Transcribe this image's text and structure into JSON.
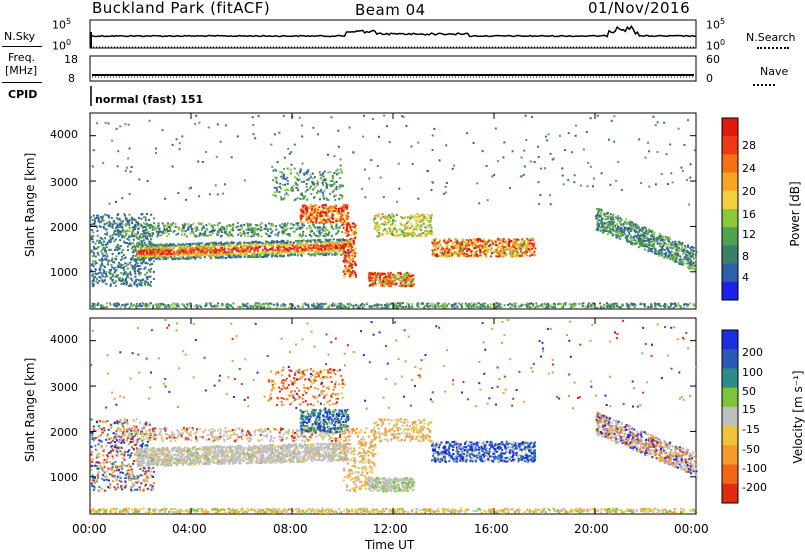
{
  "header": {
    "station": "Buckland Park (fitACF)",
    "beam": "Beam 04",
    "date": "01/Nov/2016"
  },
  "top_panels": {
    "nsky_label": "N.Sky",
    "nsky_left_ticks": [
      "10^5",
      "10^0"
    ],
    "nsearch_label": "N.Search",
    "nsearch_right_ticks": [
      "10^5",
      "10^0"
    ],
    "freq_label_1": "Freq.",
    "freq_label_2": "[MHz]",
    "freq_left_ticks": [
      "18",
      "8"
    ],
    "nave_label": "Nave",
    "nave_right_ticks": [
      "60",
      "0"
    ],
    "cpid_label": "CPID",
    "cpid_text": "normal (fast) 151"
  },
  "chart_data": [
    {
      "type": "heatmap",
      "name": "power",
      "ylabel": "Slant Range [km]",
      "yticks": [
        "1000",
        "2000",
        "3000",
        "4000"
      ],
      "ylim": [
        180,
        4500
      ],
      "colorbar_label": "Power [dB]",
      "colorbar_ticks": [
        "4",
        "8",
        "12",
        "16",
        "20",
        "24",
        "28"
      ],
      "colorbar_colors": [
        "#1e22e6",
        "#2f5fa8",
        "#3b7e6a",
        "#4fa24f",
        "#8ec83a",
        "#f2d23a",
        "#f6a623",
        "#f47216",
        "#ec3a12",
        "#e11a10"
      ]
    },
    {
      "type": "heatmap",
      "name": "velocity",
      "ylabel": "Slant Range [km]",
      "yticks": [
        "1000",
        "2000",
        "3000",
        "4000"
      ],
      "ylim": [
        180,
        4500
      ],
      "colorbar_label": "Velocity [m s⁻¹]",
      "colorbar_ticks": [
        "200",
        "100",
        "50",
        "15",
        "-15",
        "-50",
        "-100",
        "-200"
      ],
      "colorbar_colors": [
        "#1a2ee0",
        "#2a5ab8",
        "#2f8a8a",
        "#7cc43a",
        "#bfbfbf",
        "#f2c23a",
        "#f59a2a",
        "#f2661a",
        "#e02a12"
      ]
    }
  ],
  "x_axis": {
    "ticks": [
      "00:00",
      "04:00",
      "08:00",
      "12:00",
      "16:00",
      "20:00",
      "00:00"
    ],
    "label": "Time UT"
  }
}
